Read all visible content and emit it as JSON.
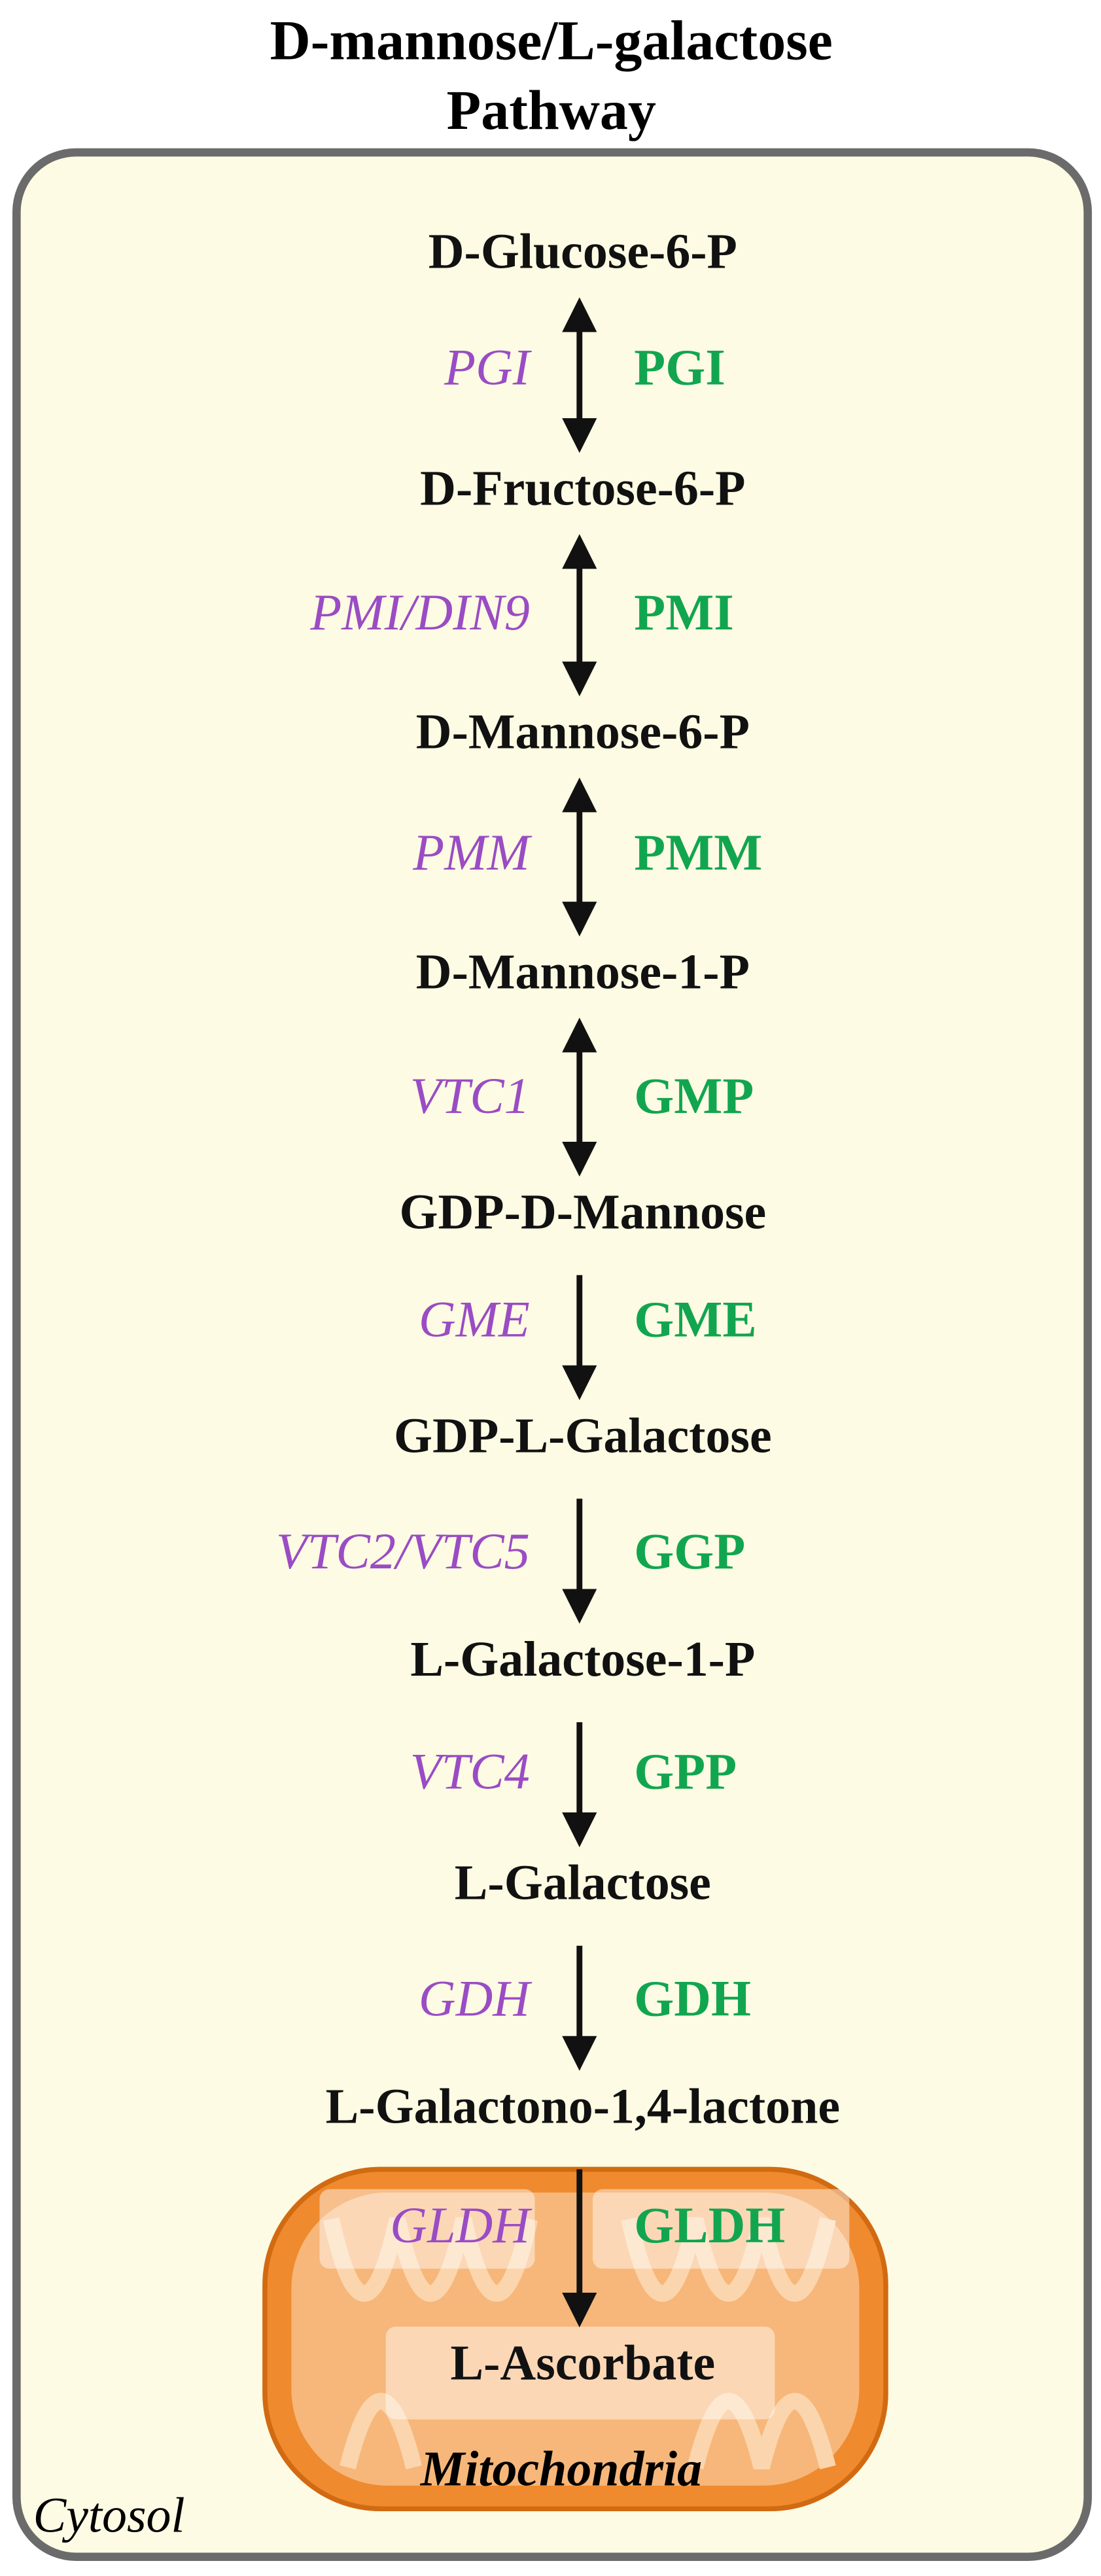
{
  "title": [
    "D-mannose/L-galactose",
    "Pathway"
  ],
  "nodes": [
    {
      "label": "D-Glucose-6-P"
    },
    {
      "label": "D-Fructose-6-P"
    },
    {
      "label": "D-Mannose-6-P"
    },
    {
      "label": "D-Mannose-1-P"
    },
    {
      "label": "GDP-D-Mannose"
    },
    {
      "label": "GDP-L-Galactose"
    },
    {
      "label": "L-Galactose-1-P"
    },
    {
      "label": "L-Galactose"
    },
    {
      "label": "L-Galactono-1,4-lactone"
    },
    {
      "label": "L-Ascorbate"
    }
  ],
  "steps": [
    {
      "gene": "PGI",
      "enzyme": "PGI",
      "reversible": true
    },
    {
      "gene": "PMI/DIN9",
      "enzyme": "PMI",
      "reversible": true
    },
    {
      "gene": "PMM",
      "enzyme": "PMM",
      "reversible": true
    },
    {
      "gene": "VTC1",
      "enzyme": "GMP",
      "reversible": true
    },
    {
      "gene": "GME",
      "enzyme": "GME",
      "reversible": false
    },
    {
      "gene": "VTC2/VTC5",
      "enzyme": "GGP",
      "reversible": false
    },
    {
      "gene": "VTC4",
      "enzyme": "GPP",
      "reversible": false
    },
    {
      "gene": "GDH",
      "enzyme": "GDH",
      "reversible": false
    },
    {
      "gene": "GLDH",
      "enzyme": "GLDH",
      "reversible": false
    }
  ],
  "compartments": {
    "outer": "Cytosol",
    "inner": "Mitochondria"
  }
}
